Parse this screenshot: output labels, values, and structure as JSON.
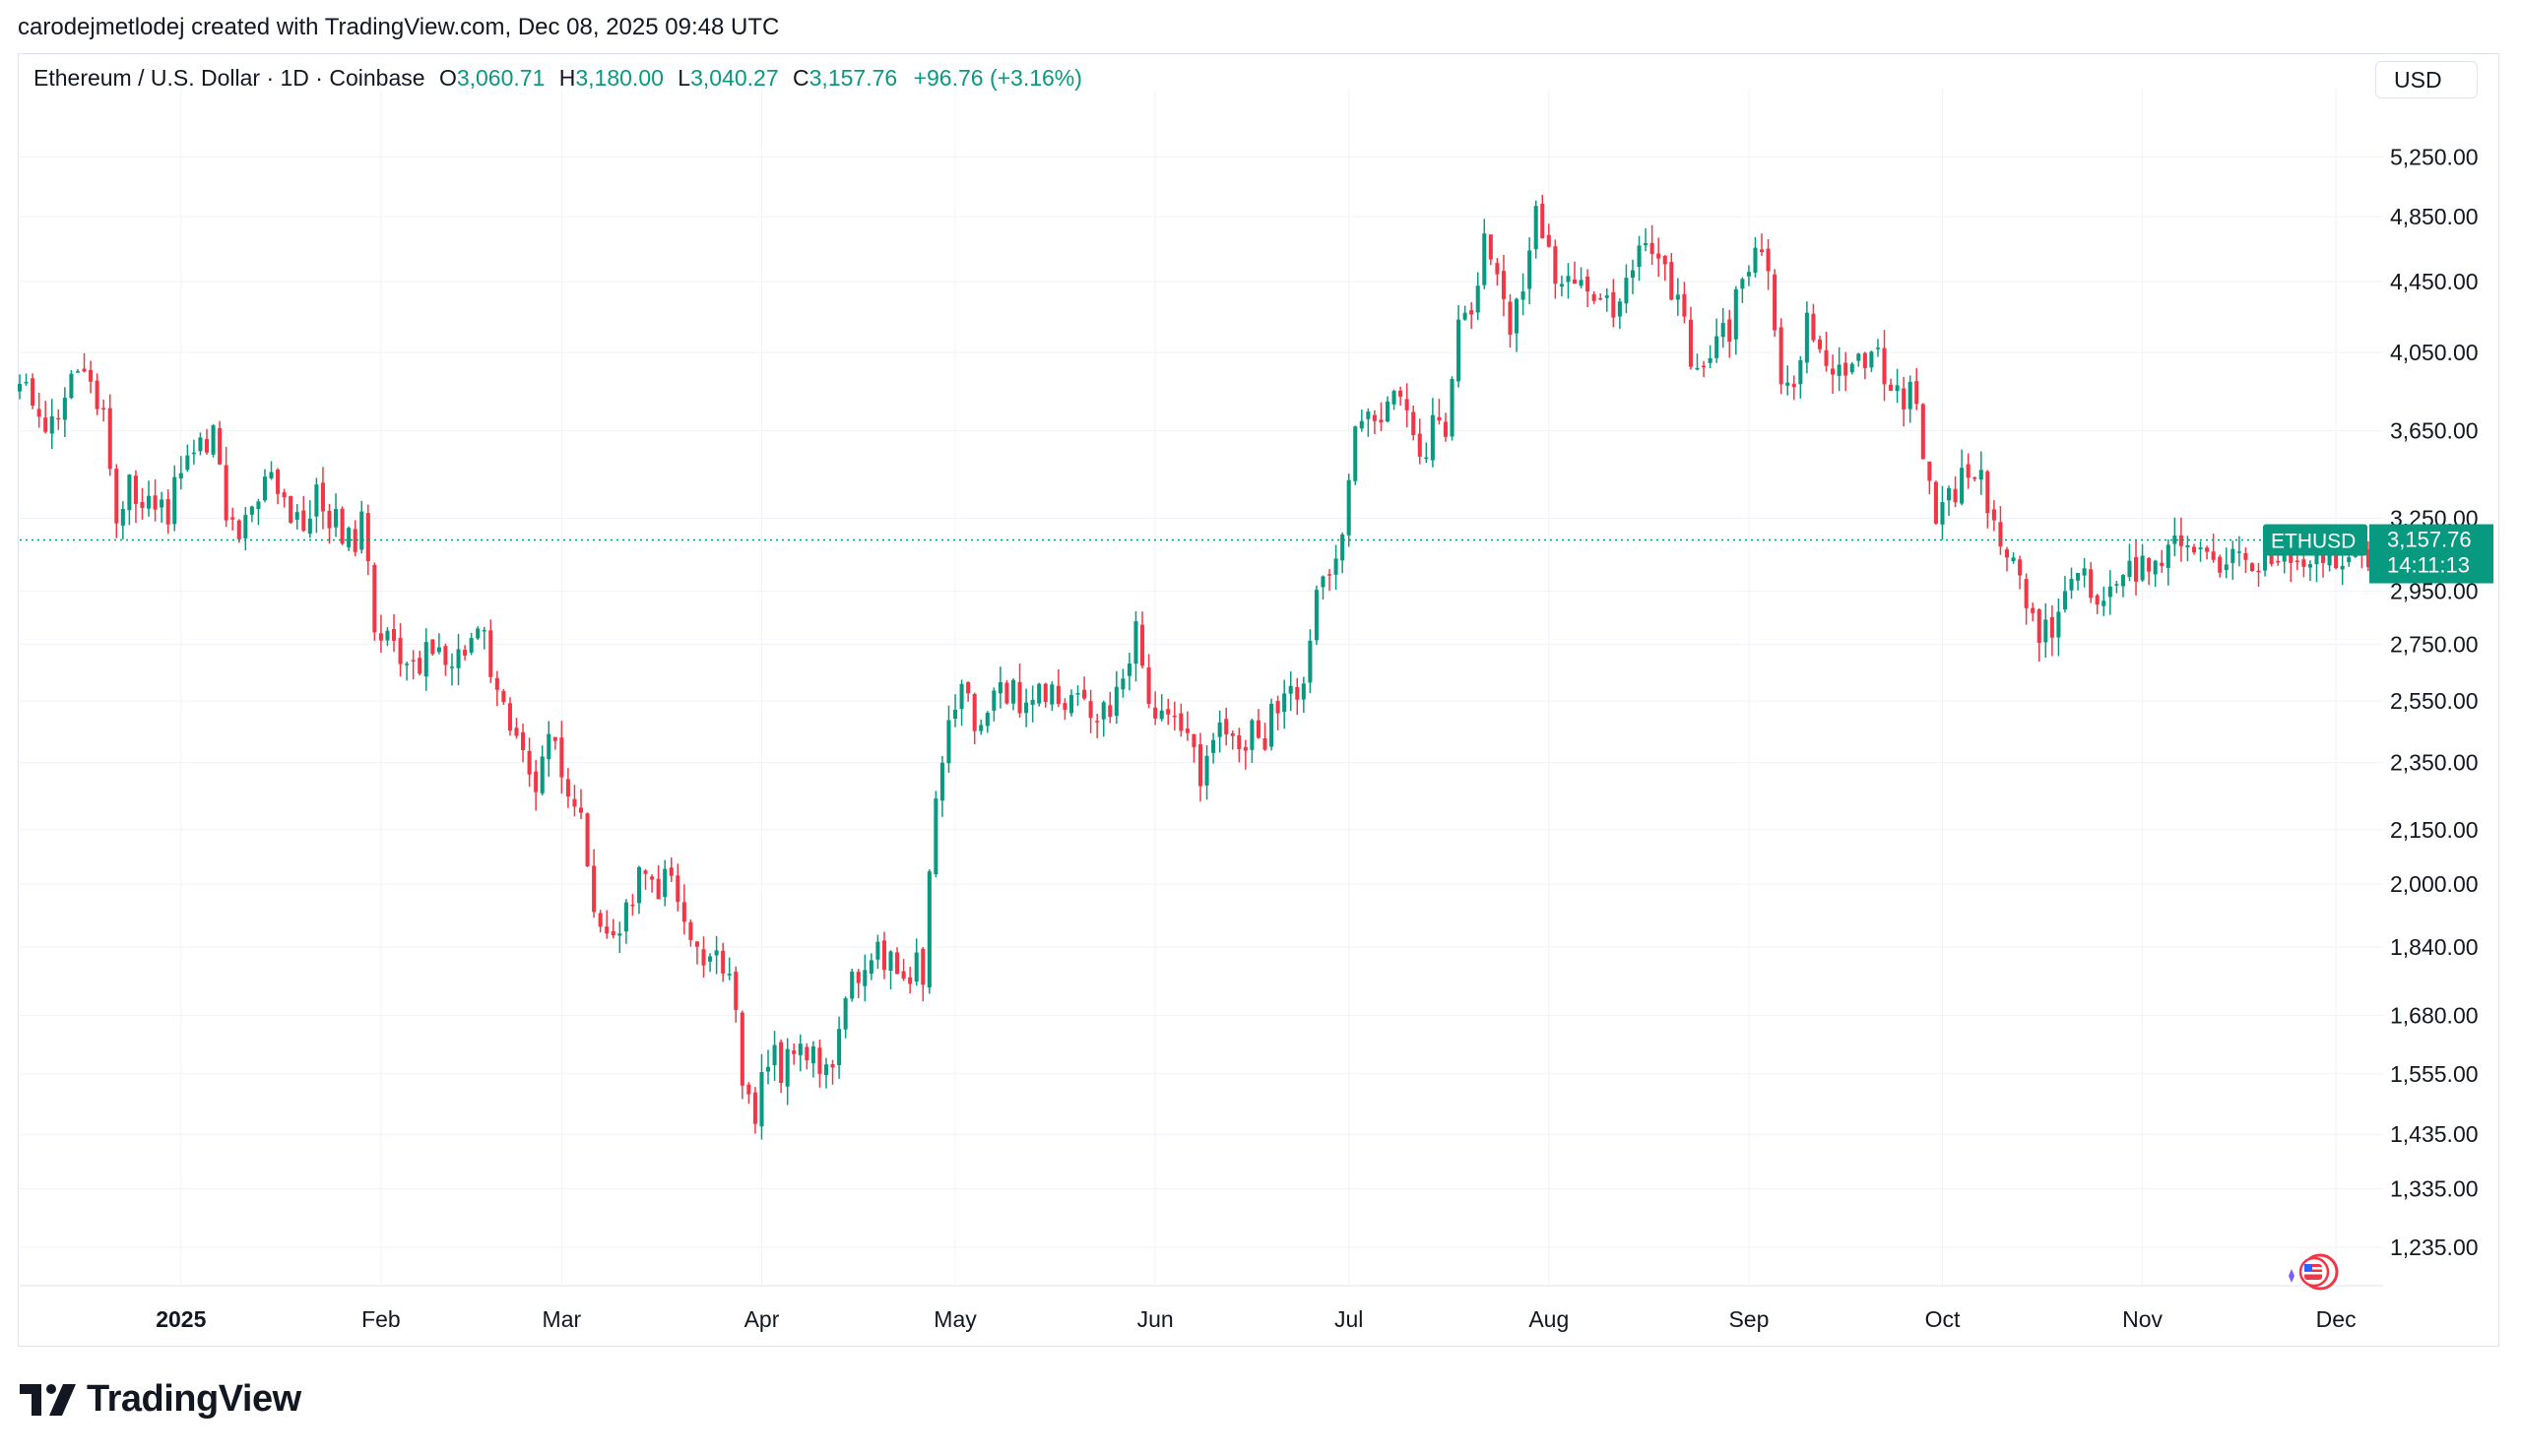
{
  "credit": "carodejmetlodej created with TradingView.com, Dec 08, 2025 09:48 UTC",
  "symbol": {
    "name": "Ethereum / U.S. Dollar · 1D · Coinbase",
    "o_label": "O",
    "o": "3,060.71",
    "h_label": "H",
    "h": "3,180.00",
    "l_label": "L",
    "l": "3,040.27",
    "c_label": "C",
    "c": "3,157.76",
    "change": "+96.76 (+3.16%)"
  },
  "currency": "USD",
  "brand": "TradingView",
  "colors": {
    "up": "#089981",
    "down": "#f23645",
    "grid": "#f0f3fa",
    "text": "#131722"
  },
  "chart_data": {
    "type": "candlestick",
    "title": "Ethereum / U.S. Dollar · 1D · Coinbase",
    "y_scale": "log",
    "ylim": [
      1180,
      5600
    ],
    "y_ticks": [
      "5,250.00",
      "4,850.00",
      "4,450.00",
      "4,050.00",
      "3,650.00",
      "3,250.00",
      "2,950.00",
      "2,750.00",
      "2,550.00",
      "2,350.00",
      "2,150.00",
      "2,000.00",
      "1,840.00",
      "1,680.00",
      "1,555.00",
      "1,435.00",
      "1,335.00",
      "1,235.00"
    ],
    "x_labels": [
      {
        "label": "2025",
        "day": 0,
        "bold": true
      },
      {
        "label": "Feb",
        "day": 31
      },
      {
        "label": "Mar",
        "day": 59
      },
      {
        "label": "Apr",
        "day": 90
      },
      {
        "label": "May",
        "day": 120
      },
      {
        "label": "Jun",
        "day": 151
      },
      {
        "label": "Jul",
        "day": 181
      },
      {
        "label": "Aug",
        "day": 212
      },
      {
        "label": "Sep",
        "day": 243
      },
      {
        "label": "Oct",
        "day": 273
      },
      {
        "label": "Nov",
        "day": 304
      },
      {
        "label": "Dec",
        "day": 334
      }
    ],
    "first_day": -25,
    "last_day": 341,
    "anchors": [
      [
        -25,
        3900
      ],
      [
        -22,
        3650
      ],
      [
        -18,
        3800
      ],
      [
        -15,
        3950
      ],
      [
        -12,
        3700
      ],
      [
        -10,
        3300
      ],
      [
        -8,
        3400
      ],
      [
        -5,
        3350
      ],
      [
        -2,
        3300
      ],
      [
        2,
        3600
      ],
      [
        5,
        3650
      ],
      [
        7,
        3300
      ],
      [
        10,
        3200
      ],
      [
        13,
        3450
      ],
      [
        16,
        3300
      ],
      [
        19,
        3250
      ],
      [
        22,
        3350
      ],
      [
        25,
        3150
      ],
      [
        28,
        3200
      ],
      [
        30,
        2850
      ],
      [
        32,
        2750
      ],
      [
        35,
        2650
      ],
      [
        38,
        2700
      ],
      [
        41,
        2700
      ],
      [
        44,
        2680
      ],
      [
        47,
        2800
      ],
      [
        50,
        2500
      ],
      [
        53,
        2400
      ],
      [
        55,
        2300
      ],
      [
        57,
        2450
      ],
      [
        60,
        2200
      ],
      [
        62,
        2150
      ],
      [
        64,
        1950
      ],
      [
        67,
        1900
      ],
      [
        70,
        1950
      ],
      [
        72,
        2050
      ],
      [
        74,
        2000
      ],
      [
        76,
        2050
      ],
      [
        78,
        1950
      ],
      [
        80,
        1850
      ],
      [
        83,
        1800
      ],
      [
        85,
        1800
      ],
      [
        87,
        1550
      ],
      [
        89,
        1450
      ],
      [
        91,
        1600
      ],
      [
        93,
        1560
      ],
      [
        95,
        1600
      ],
      [
        97,
        1580
      ],
      [
        99,
        1580
      ],
      [
        101,
        1590
      ],
      [
        103,
        1760
      ],
      [
        106,
        1800
      ],
      [
        109,
        1820
      ],
      [
        112,
        1800
      ],
      [
        115,
        1790
      ],
      [
        117,
        2200
      ],
      [
        119,
        2550
      ],
      [
        121,
        2600
      ],
      [
        123,
        2500
      ],
      [
        125,
        2500
      ],
      [
        127,
        2600
      ],
      [
        130,
        2550
      ],
      [
        133,
        2550
      ],
      [
        135,
        2650
      ],
      [
        137,
        2550
      ],
      [
        140,
        2600
      ],
      [
        142,
        2450
      ],
      [
        144,
        2550
      ],
      [
        146,
        2600
      ],
      [
        148,
        2800
      ],
      [
        150,
        2600
      ],
      [
        152,
        2500
      ],
      [
        154,
        2550
      ],
      [
        156,
        2450
      ],
      [
        158,
        2250
      ],
      [
        160,
        2400
      ],
      [
        162,
        2450
      ],
      [
        164,
        2400
      ],
      [
        166,
        2450
      ],
      [
        168,
        2450
      ],
      [
        170,
        2550
      ],
      [
        172,
        2550
      ],
      [
        174,
        2600
      ],
      [
        176,
        2950
      ],
      [
        178,
        3000
      ],
      [
        180,
        3250
      ],
      [
        182,
        3600
      ],
      [
        184,
        3700
      ],
      [
        186,
        3650
      ],
      [
        188,
        3800
      ],
      [
        190,
        3750
      ],
      [
        192,
        3450
      ],
      [
        194,
        3650
      ],
      [
        196,
        3700
      ],
      [
        198,
        4200
      ],
      [
        200,
        4300
      ],
      [
        202,
        4750
      ],
      [
        204,
        4500
      ],
      [
        206,
        4100
      ],
      [
        208,
        4400
      ],
      [
        210,
        4800
      ],
      [
        212,
        4600
      ],
      [
        214,
        4400
      ],
      [
        216,
        4350
      ],
      [
        218,
        4450
      ],
      [
        220,
        4350
      ],
      [
        222,
        4300
      ],
      [
        224,
        4400
      ],
      [
        226,
        4650
      ],
      [
        228,
        4600
      ],
      [
        230,
        4500
      ],
      [
        232,
        4300
      ],
      [
        234,
        4050
      ],
      [
        236,
        3900
      ],
      [
        238,
        4050
      ],
      [
        240,
        4200
      ],
      [
        242,
        4500
      ],
      [
        244,
        4600
      ],
      [
        246,
        4450
      ],
      [
        248,
        3800
      ],
      [
        250,
        3900
      ],
      [
        252,
        4300
      ],
      [
        254,
        4100
      ],
      [
        256,
        3950
      ],
      [
        258,
        3900
      ],
      [
        260,
        4000
      ],
      [
        262,
        4100
      ],
      [
        264,
        3900
      ],
      [
        266,
        3850
      ],
      [
        268,
        3800
      ],
      [
        270,
        3600
      ],
      [
        272,
        3200
      ],
      [
        274,
        3300
      ],
      [
        276,
        3450
      ],
      [
        278,
        3500
      ],
      [
        280,
        3300
      ],
      [
        282,
        3100
      ],
      [
        284,
        3050
      ],
      [
        286,
        2900
      ],
      [
        288,
        2750
      ],
      [
        290,
        2800
      ],
      [
        292,
        2950
      ],
      [
        294,
        3000
      ],
      [
        296,
        2980
      ],
      [
        298,
        2850
      ],
      [
        300,
        3050
      ],
      [
        302,
        3020
      ],
      [
        304,
        3100
      ]
    ],
    "last_price": "3,157.76",
    "last_price_value": 3157.76,
    "last_symbol": "ETHUSD",
    "countdown": "14:11:13"
  }
}
